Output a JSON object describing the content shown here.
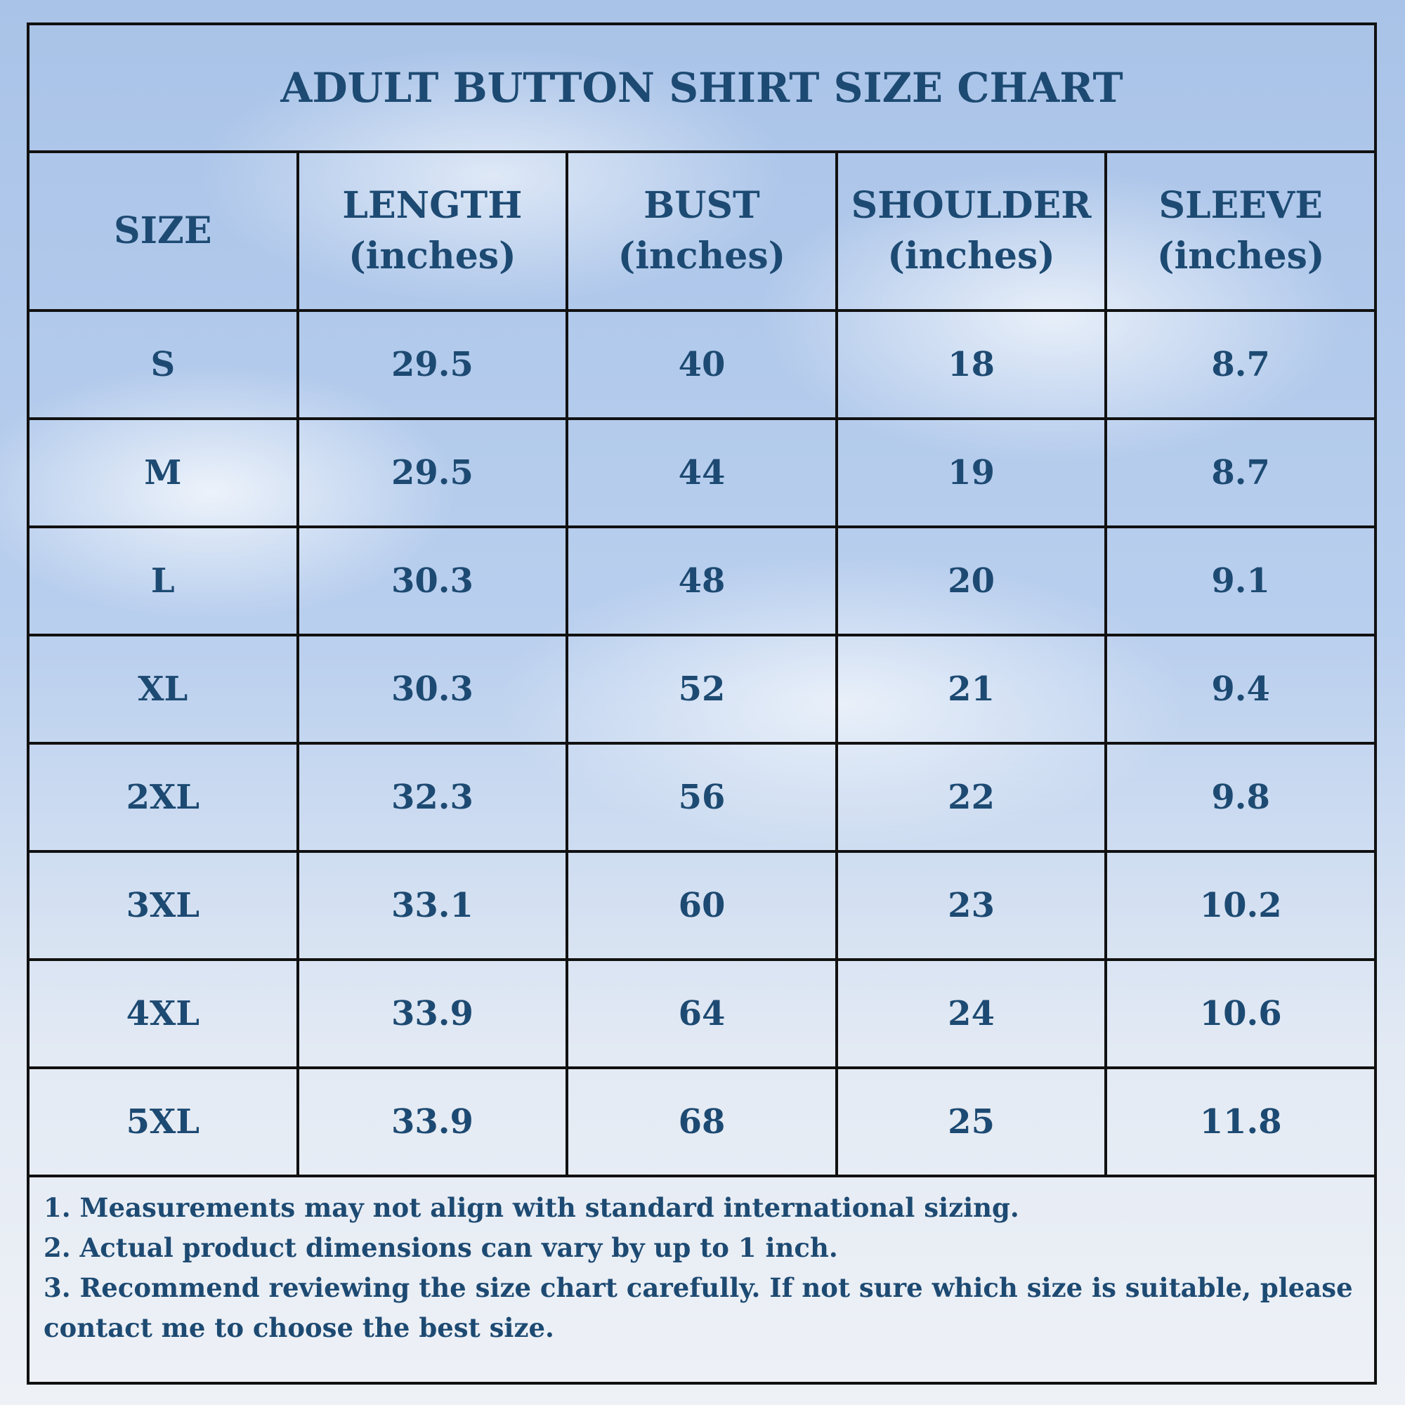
{
  "title": "ADULT BUTTON SHIRT SIZE CHART",
  "table": {
    "header": [
      {
        "name": "SIZE"
      },
      {
        "name": "LENGTH",
        "unit": "(inches)"
      },
      {
        "name": "BUST",
        "unit": "(inches)"
      },
      {
        "name": "SHOULDER",
        "unit": "(inches)"
      },
      {
        "name": "SLEEVE",
        "unit": "(inches)"
      }
    ],
    "rows": [
      [
        "S",
        "29.5",
        "40",
        "18",
        "8.7"
      ],
      [
        "M",
        "29.5",
        "44",
        "19",
        "8.7"
      ],
      [
        "L",
        "30.3",
        "48",
        "20",
        "9.1"
      ],
      [
        "XL",
        "30.3",
        "52",
        "21",
        "9.4"
      ],
      [
        "2XL",
        "32.3",
        "56",
        "22",
        "9.8"
      ],
      [
        "3XL",
        "33.1",
        "60",
        "23",
        "10.2"
      ],
      [
        "4XL",
        "33.9",
        "64",
        "24",
        "10.6"
      ],
      [
        "5XL",
        "33.9",
        "68",
        "25",
        "11.8"
      ]
    ]
  },
  "notes": [
    "1. Measurements may not align with standard international sizing.",
    "2. Actual product dimensions can vary by up to 1 inch.",
    "3. Recommend reviewing the size chart carefully. If not sure which size is suitable, please contact me to choose the best size."
  ]
}
